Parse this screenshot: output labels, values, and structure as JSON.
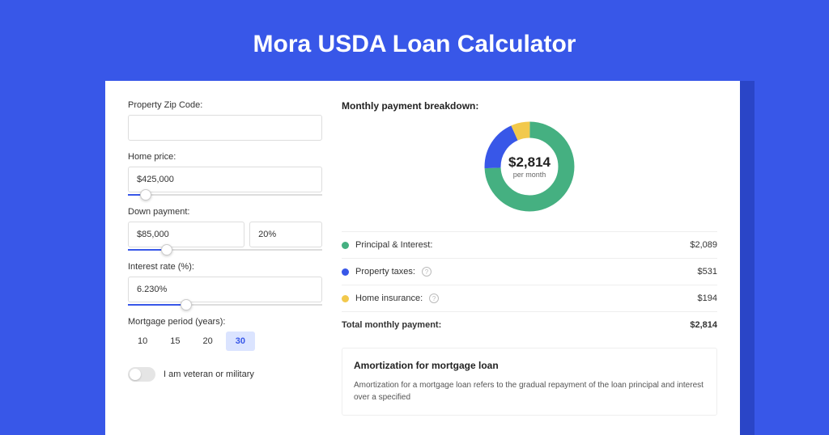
{
  "page": {
    "title": "Mora USDA Loan Calculator",
    "background_color": "#3857e8",
    "shadow_color": "#2a45c7"
  },
  "form": {
    "zip_label": "Property Zip Code:",
    "zip_value": "",
    "home_price_label": "Home price:",
    "home_price_value": "$425,000",
    "home_price_slider_pct": 9,
    "down_payment_label": "Down payment:",
    "down_payment_value": "$85,000",
    "down_payment_pct": "20%",
    "down_payment_slider_pct": 20,
    "interest_label": "Interest rate (%):",
    "interest_value": "6.230%",
    "interest_slider_pct": 30,
    "period_label": "Mortgage period (years):",
    "periods": [
      "10",
      "15",
      "20",
      "30"
    ],
    "period_selected": "30",
    "veteran_label": "I am veteran or military",
    "veteran_on": false
  },
  "breakdown": {
    "title": "Monthly payment breakdown:",
    "donut": {
      "value": "$2,814",
      "sub": "per month",
      "slices": [
        {
          "label": "Principal & Interest",
          "value_num": 2089,
          "color": "#45b081",
          "pct": 74.3
        },
        {
          "label": "Property taxes",
          "value_num": 531,
          "color": "#3857e8",
          "pct": 18.9
        },
        {
          "label": "Home insurance",
          "value_num": 194,
          "color": "#f2c94c",
          "pct": 6.8
        }
      ]
    },
    "lines": [
      {
        "dot": "#45b081",
        "label": "Principal & Interest:",
        "info": false,
        "value": "$2,089"
      },
      {
        "dot": "#3857e8",
        "label": "Property taxes:",
        "info": true,
        "value": "$531"
      },
      {
        "dot": "#f2c94c",
        "label": "Home insurance:",
        "info": true,
        "value": "$194"
      }
    ],
    "total_label": "Total monthly payment:",
    "total_value": "$2,814"
  },
  "amortization": {
    "title": "Amortization for mortgage loan",
    "text": "Amortization for a mortgage loan refers to the gradual repayment of the loan principal and interest over a specified"
  }
}
